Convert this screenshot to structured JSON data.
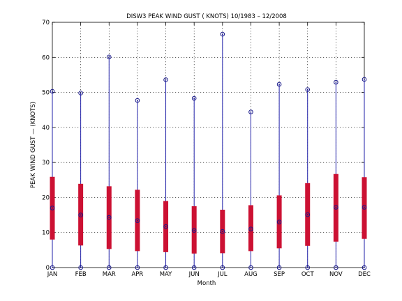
{
  "chart_data": {
    "type": "box",
    "title": "DISW3  PEAK WIND GUST ( KNOTS) 10/1983 – 12/2008",
    "xlabel": "Month",
    "ylabel": "PEAK WIND GUST  —  (KNOTS)",
    "ylim": [
      0,
      70
    ],
    "yticks": [
      0,
      10,
      20,
      30,
      40,
      50,
      60,
      70
    ],
    "grid": true,
    "categories": [
      "JAN",
      "FEB",
      "MAR",
      "APR",
      "MAY",
      "JUN",
      "JUL",
      "AUG",
      "SEP",
      "OCT",
      "NOV",
      "DEC"
    ],
    "min": [
      0,
      0,
      0,
      0,
      0,
      0,
      0,
      0,
      0,
      0,
      0,
      0
    ],
    "q1": [
      8,
      6.3,
      5.3,
      4.7,
      4.4,
      4,
      4.1,
      4.7,
      5.5,
      6.2,
      7.4,
      8.2
    ],
    "median": [
      17,
      15,
      14.3,
      13.4,
      11.7,
      10.6,
      10.3,
      11,
      13,
      15.1,
      17.2,
      17.2
    ],
    "q3": [
      25.9,
      23.9,
      23.2,
      22.2,
      19,
      17.5,
      16.5,
      17.8,
      20.6,
      24.1,
      26.7,
      25.8
    ],
    "max": [
      50.3,
      49.8,
      60.1,
      47.7,
      53.6,
      48.3,
      66.6,
      44.4,
      52.3,
      50.8,
      52.9,
      53.7
    ],
    "colors": {
      "whisker": "#1f1fa8",
      "box": "#cc1133",
      "marker": "#1a1a8a"
    }
  }
}
